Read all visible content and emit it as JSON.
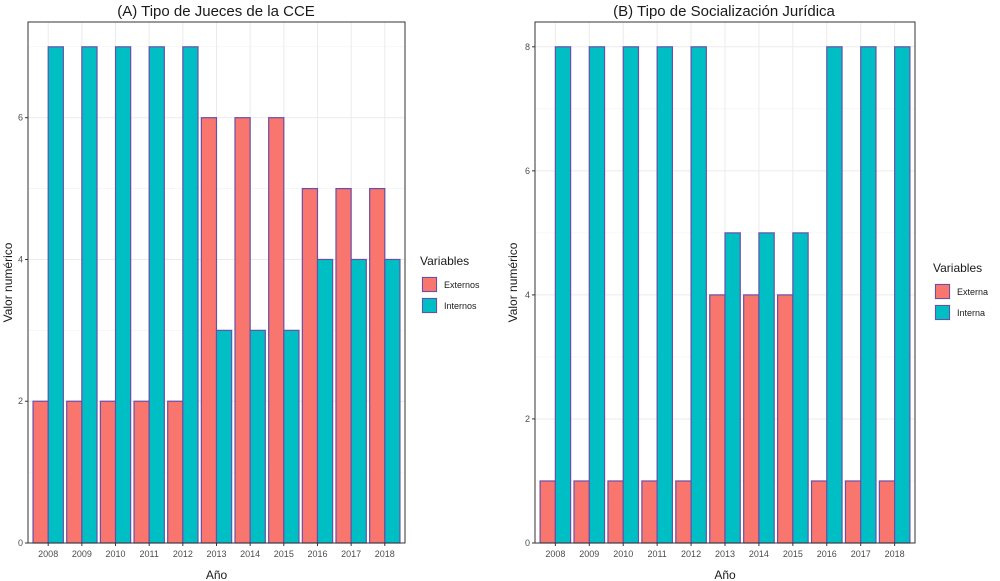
{
  "chart_data": [
    {
      "type": "bar",
      "title": "(A) Tipo de Jueces de la CCE",
      "xlabel": "Año",
      "ylabel": "Valor numérico",
      "categories": [
        "2008",
        "2009",
        "2010",
        "2011",
        "2012",
        "2013",
        "2014",
        "2015",
        "2016",
        "2017",
        "2018"
      ],
      "series": [
        {
          "name": "Externos",
          "color": "#F8766D",
          "values": [
            2,
            2,
            2,
            2,
            2,
            6,
            6,
            6,
            5,
            5,
            5
          ]
        },
        {
          "name": "Internos",
          "color": "#00BFC4",
          "values": [
            7,
            7,
            7,
            7,
            7,
            3,
            3,
            3,
            4,
            4,
            4
          ]
        }
      ],
      "ylim": [
        0,
        7.35
      ],
      "yticks": [
        0,
        2,
        4,
        6
      ],
      "grid": true,
      "legend_title": "Variables",
      "legend_position": "right"
    },
    {
      "type": "bar",
      "title": "(B) Tipo de Socialización Jurídica",
      "xlabel": "Año",
      "ylabel": "Valor numérico",
      "categories": [
        "2008",
        "2009",
        "2010",
        "2011",
        "2012",
        "2013",
        "2014",
        "2015",
        "2016",
        "2017",
        "2018"
      ],
      "series": [
        {
          "name": "Externa",
          "color": "#F8766D",
          "values": [
            1,
            1,
            1,
            1,
            1,
            4,
            4,
            4,
            1,
            1,
            1
          ]
        },
        {
          "name": "Interna",
          "color": "#00BFC4",
          "values": [
            8,
            8,
            8,
            8,
            8,
            5,
            5,
            5,
            8,
            8,
            8
          ]
        }
      ],
      "ylim": [
        0,
        8.4
      ],
      "yticks": [
        0,
        2,
        4,
        6,
        8
      ],
      "grid": true,
      "legend_title": "Variables",
      "legend_position": "right"
    }
  ]
}
